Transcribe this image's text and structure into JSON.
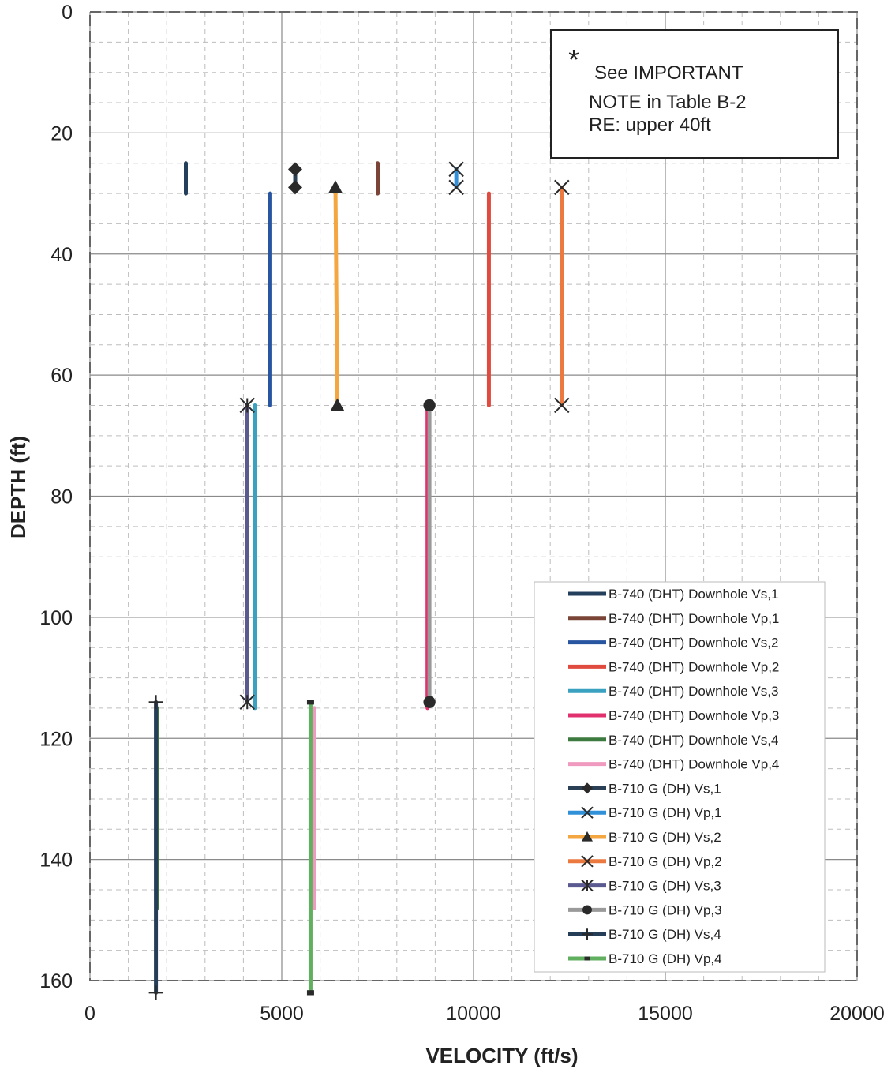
{
  "chart_data": {
    "type": "line",
    "xlabel": "VELOCITY (ft/s)",
    "ylabel": "DEPTH (ft)",
    "xlim": [
      0,
      20000
    ],
    "ylim": [
      0,
      160
    ],
    "y_inverted": true,
    "x_ticks": [
      "0",
      "5000",
      "10000",
      "15000",
      "20000"
    ],
    "y_ticks": [
      "0",
      "20",
      "40",
      "60",
      "80",
      "100",
      "120",
      "140",
      "160"
    ],
    "grid": "major solid, minor dashed",
    "legend_position": "bottom-right",
    "annotation": {
      "symbol": "*",
      "lines": [
        "See IMPORTANT",
        "NOTE in Table B-2",
        "RE: upper 40ft"
      ]
    },
    "series": [
      {
        "name": "B-740 (DHT) Downhole Vs,1",
        "color": "#233f5c",
        "marker": "none",
        "x": [
          2500,
          2500
        ],
        "y": [
          25,
          30
        ]
      },
      {
        "name": "B-740 (DHT) Downhole Vp,1",
        "color": "#7a4536",
        "marker": "none",
        "x": [
          7500,
          7500
        ],
        "y": [
          25,
          30
        ]
      },
      {
        "name": "B-740 (DHT) Downhole Vs,2",
        "color": "#2855a0",
        "marker": "none",
        "x": [
          4700,
          4700
        ],
        "y": [
          30,
          65
        ]
      },
      {
        "name": "B-740 (DHT) Downhole Vp,2",
        "color": "#e04b40",
        "marker": "none",
        "x": [
          10400,
          10400
        ],
        "y": [
          30,
          65
        ]
      },
      {
        "name": "B-740 (DHT) Downhole Vs,3",
        "color": "#3aa2c0",
        "marker": "none",
        "x": [
          4300,
          4300
        ],
        "y": [
          65,
          115
        ]
      },
      {
        "name": "B-740 (DHT) Downhole Vp,3",
        "color": "#e0306e",
        "marker": "none",
        "x": [
          8800,
          8800
        ],
        "y": [
          65,
          115
        ]
      },
      {
        "name": "B-740 (DHT) Downhole Vs,4",
        "color": "#3d7a3f",
        "marker": "none",
        "x": [
          1750,
          1750
        ],
        "y": [
          115,
          148
        ]
      },
      {
        "name": "B-740 (DHT) Downhole Vp,4",
        "color": "#f09ac0",
        "marker": "none",
        "x": [
          5850,
          5850
        ],
        "y": [
          115,
          148
        ]
      },
      {
        "name": "B-710 G (DH) Vs,1",
        "color": "#2b3f55",
        "marker": "diamond",
        "x": [
          5350,
          5350
        ],
        "y": [
          26,
          29
        ]
      },
      {
        "name": "B-710 G (DH) Vp,1",
        "color": "#3090d8",
        "marker": "x",
        "x": [
          9550,
          9550
        ],
        "y": [
          26,
          29
        ]
      },
      {
        "name": "B-710 G (DH) Vs,2",
        "color": "#f4a640",
        "marker": "triangle",
        "x": [
          6400,
          6450
        ],
        "y": [
          29,
          65
        ]
      },
      {
        "name": "B-710 G (DH) Vp,2",
        "color": "#ec7a40",
        "marker": "x",
        "x": [
          12300,
          12300
        ],
        "y": [
          29,
          65
        ]
      },
      {
        "name": "B-710 G (DH) Vs,3",
        "color": "#5a5a90",
        "marker": "star",
        "x": [
          4100,
          4100
        ],
        "y": [
          65,
          114
        ]
      },
      {
        "name": "B-710 G (DH) Vp,3",
        "color": "#9a9a9a",
        "marker": "circle",
        "x": [
          8850,
          8850
        ],
        "y": [
          65,
          114
        ]
      },
      {
        "name": "B-710 G (DH) Vs,4",
        "color": "#263d58",
        "marker": "plus",
        "x": [
          1720,
          1720
        ],
        "y": [
          114,
          162
        ]
      },
      {
        "name": "B-710 G (DH) Vp,4",
        "color": "#60b060",
        "marker": "square",
        "x": [
          5750,
          5750
        ],
        "y": [
          114,
          162
        ]
      }
    ]
  }
}
